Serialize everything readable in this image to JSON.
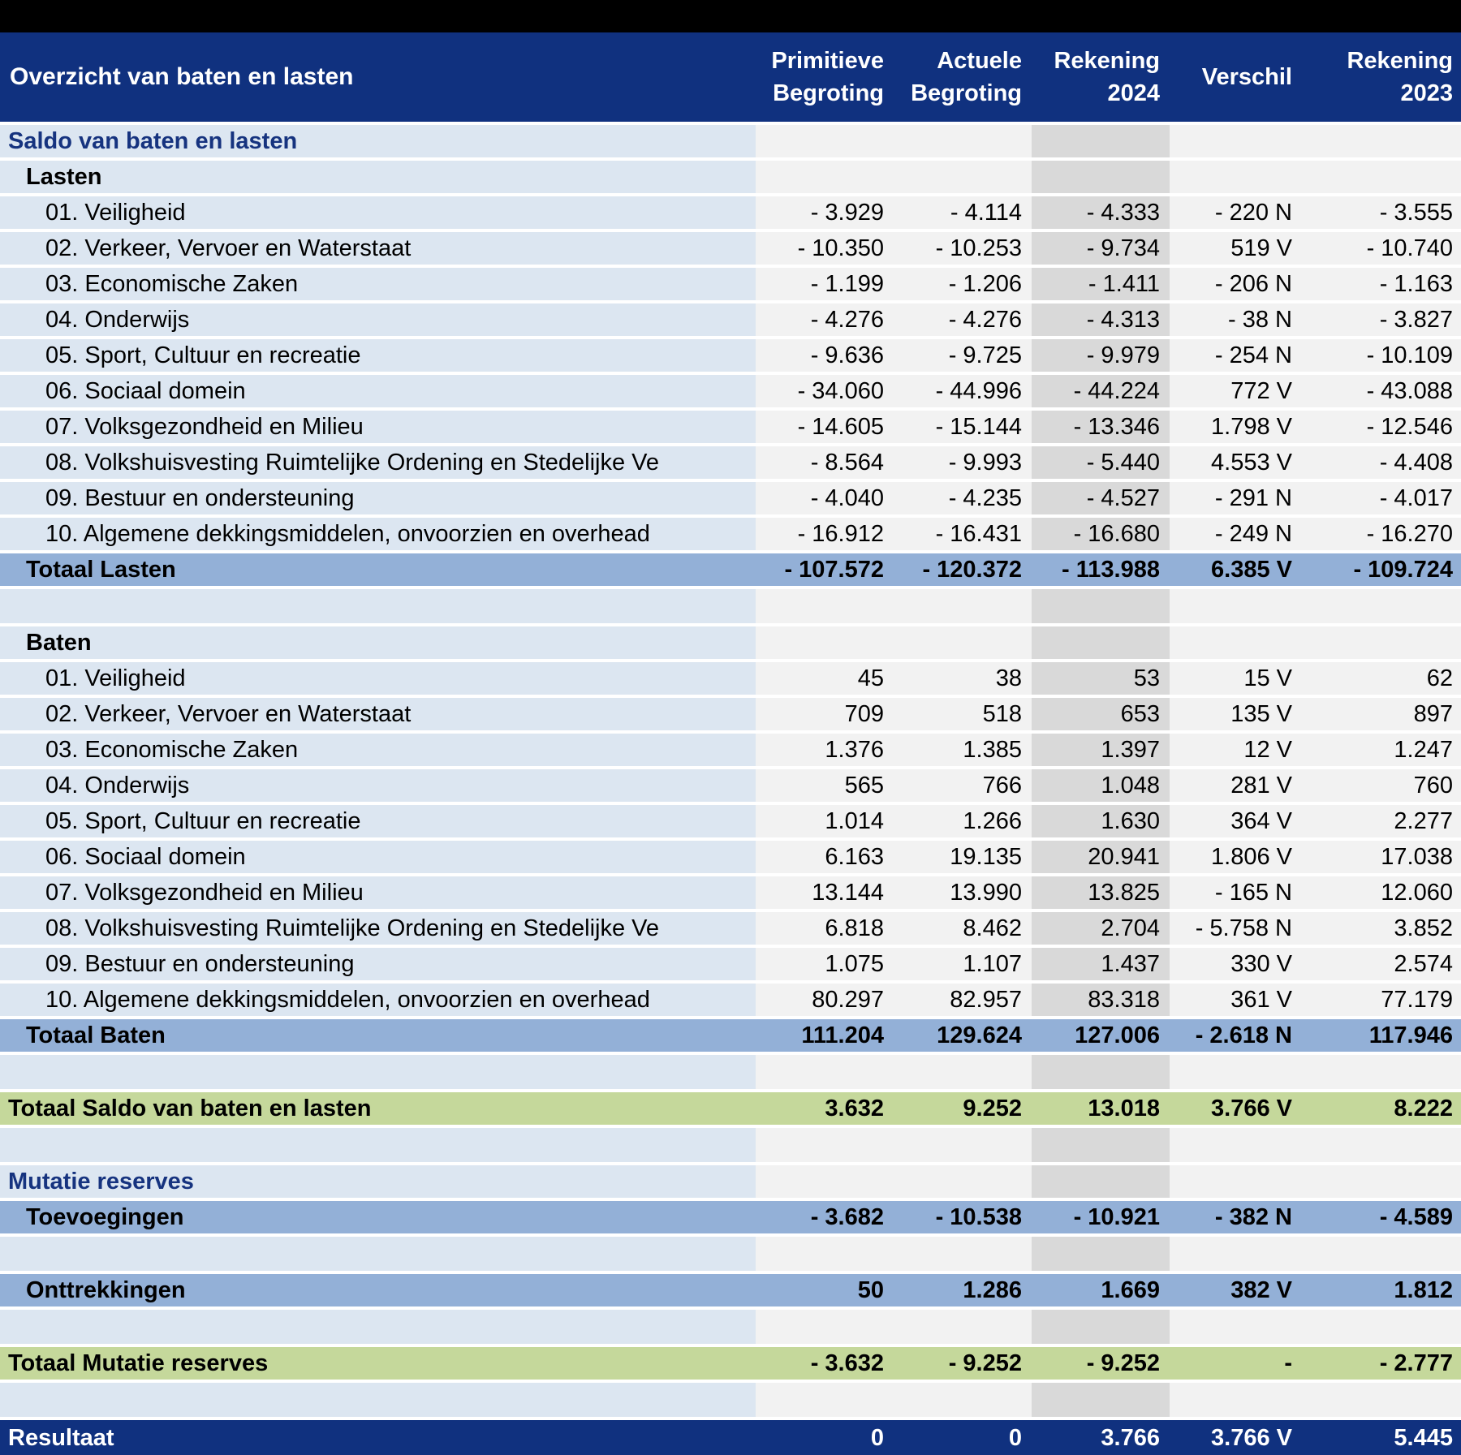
{
  "title": "Overzicht van baten en lasten",
  "colors": {
    "header_bg": "#10317F",
    "label_bg": "#DCE6F1",
    "value_bg": "#F2F2F2",
    "highlight_bg": "#D9D9D9",
    "total_bg": "#93B0D7",
    "grand_bg": "#C5D89B",
    "section_text": "#16337F"
  },
  "chart_data": {
    "type": "table",
    "title": "Overzicht van baten en lasten",
    "columns": [
      "Primitieve Begroting",
      "Actuele Begroting",
      "Rekening 2024",
      "Verschil",
      "Rekening 2023"
    ],
    "rows": [
      {
        "type": "section",
        "name": "row-saldo-van-baten-en-lasten",
        "label": "Saldo van baten en lasten",
        "values": [
          "",
          "",
          "",
          "",
          ""
        ]
      },
      {
        "type": "subheader",
        "name": "row-lasten-header",
        "label": "Lasten",
        "values": [
          "",
          "",
          "",
          "",
          ""
        ]
      },
      {
        "type": "item",
        "name": "row-lasten-01",
        "label": "01. Veiligheid",
        "values": [
          "- 3.929",
          "- 4.114",
          "- 4.333",
          "- 220 N",
          "- 3.555"
        ]
      },
      {
        "type": "item",
        "name": "row-lasten-02",
        "label": "02. Verkeer, Vervoer en Waterstaat",
        "values": [
          "- 10.350",
          "- 10.253",
          "- 9.734",
          "519 V",
          "- 10.740"
        ]
      },
      {
        "type": "item",
        "name": "row-lasten-03",
        "label": "03. Economische Zaken",
        "values": [
          "- 1.199",
          "- 1.206",
          "- 1.411",
          "- 206 N",
          "- 1.163"
        ]
      },
      {
        "type": "item",
        "name": "row-lasten-04",
        "label": "04. Onderwijs",
        "values": [
          "- 4.276",
          "- 4.276",
          "- 4.313",
          "- 38 N",
          "- 3.827"
        ]
      },
      {
        "type": "item",
        "name": "row-lasten-05",
        "label": "05. Sport, Cultuur en recreatie",
        "values": [
          "- 9.636",
          "- 9.725",
          "- 9.979",
          "- 254 N",
          "- 10.109"
        ]
      },
      {
        "type": "item",
        "name": "row-lasten-06",
        "label": "06. Sociaal domein",
        "values": [
          "- 34.060",
          "- 44.996",
          "- 44.224",
          "772 V",
          "- 43.088"
        ]
      },
      {
        "type": "item",
        "name": "row-lasten-07",
        "label": "07. Volksgezondheid en Milieu",
        "values": [
          "- 14.605",
          "- 15.144",
          "- 13.346",
          "1.798 V",
          "- 12.546"
        ]
      },
      {
        "type": "item",
        "name": "row-lasten-08",
        "label": "08. Volkshuisvesting Ruimtelijke Ordening en Stedelijke Ve",
        "values": [
          "- 8.564",
          "- 9.993",
          "- 5.440",
          "4.553 V",
          "- 4.408"
        ]
      },
      {
        "type": "item",
        "name": "row-lasten-09",
        "label": "09. Bestuur en ondersteuning",
        "values": [
          "- 4.040",
          "- 4.235",
          "- 4.527",
          "- 291 N",
          "- 4.017"
        ]
      },
      {
        "type": "item",
        "name": "row-lasten-10",
        "label": "10. Algemene dekkingsmiddelen, onvoorzien en overhead",
        "values": [
          "- 16.912",
          "- 16.431",
          "- 16.680",
          "- 249 N",
          "- 16.270"
        ]
      },
      {
        "type": "total",
        "name": "row-totaal-lasten",
        "label": "Totaal Lasten",
        "values": [
          "- 107.572",
          "- 120.372",
          "- 113.988",
          "6.385 V",
          "- 109.724"
        ]
      },
      {
        "type": "spacer",
        "name": "row-spacer-1",
        "label": "",
        "values": [
          "",
          "",
          "",
          "",
          ""
        ]
      },
      {
        "type": "subheader",
        "name": "row-baten-header",
        "label": "Baten",
        "values": [
          "",
          "",
          "",
          "",
          ""
        ]
      },
      {
        "type": "item",
        "name": "row-baten-01",
        "label": "01. Veiligheid",
        "values": [
          "45",
          "38",
          "53",
          "15 V",
          "62"
        ]
      },
      {
        "type": "item",
        "name": "row-baten-02",
        "label": "02. Verkeer, Vervoer en Waterstaat",
        "values": [
          "709",
          "518",
          "653",
          "135 V",
          "897"
        ]
      },
      {
        "type": "item",
        "name": "row-baten-03",
        "label": "03. Economische Zaken",
        "values": [
          "1.376",
          "1.385",
          "1.397",
          "12 V",
          "1.247"
        ]
      },
      {
        "type": "item",
        "name": "row-baten-04",
        "label": "04. Onderwijs",
        "values": [
          "565",
          "766",
          "1.048",
          "281 V",
          "760"
        ]
      },
      {
        "type": "item",
        "name": "row-baten-05",
        "label": "05. Sport, Cultuur en recreatie",
        "values": [
          "1.014",
          "1.266",
          "1.630",
          "364 V",
          "2.277"
        ]
      },
      {
        "type": "item",
        "name": "row-baten-06",
        "label": "06. Sociaal domein",
        "values": [
          "6.163",
          "19.135",
          "20.941",
          "1.806 V",
          "17.038"
        ]
      },
      {
        "type": "item",
        "name": "row-baten-07",
        "label": "07. Volksgezondheid en Milieu",
        "values": [
          "13.144",
          "13.990",
          "13.825",
          "- 165 N",
          "12.060"
        ]
      },
      {
        "type": "item",
        "name": "row-baten-08",
        "label": "08. Volkshuisvesting Ruimtelijke Ordening en Stedelijke Ve",
        "values": [
          "6.818",
          "8.462",
          "2.704",
          "- 5.758 N",
          "3.852"
        ]
      },
      {
        "type": "item",
        "name": "row-baten-09",
        "label": "09. Bestuur en ondersteuning",
        "values": [
          "1.075",
          "1.107",
          "1.437",
          "330 V",
          "2.574"
        ]
      },
      {
        "type": "item",
        "name": "row-baten-10",
        "label": "10. Algemene dekkingsmiddelen, onvoorzien en overhead",
        "values": [
          "80.297",
          "82.957",
          "83.318",
          "361 V",
          "77.179"
        ]
      },
      {
        "type": "total",
        "name": "row-totaal-baten",
        "label": "Totaal Baten",
        "values": [
          "111.204",
          "129.624",
          "127.006",
          "- 2.618 N",
          "117.946"
        ]
      },
      {
        "type": "spacer",
        "name": "row-spacer-2",
        "label": "",
        "values": [
          "",
          "",
          "",
          "",
          ""
        ]
      },
      {
        "type": "grand",
        "name": "row-totaal-saldo",
        "label": "Totaal Saldo van baten en lasten",
        "values": [
          "3.632",
          "9.252",
          "13.018",
          "3.766 V",
          "8.222"
        ]
      },
      {
        "type": "spacer",
        "name": "row-spacer-3",
        "label": "",
        "values": [
          "",
          "",
          "",
          "",
          ""
        ]
      },
      {
        "type": "section",
        "name": "row-mutatie-reserves",
        "label": "Mutatie reserves",
        "values": [
          "",
          "",
          "",
          "",
          ""
        ]
      },
      {
        "type": "total",
        "name": "row-toevoegingen",
        "label": "Toevoegingen",
        "values": [
          "- 3.682",
          "- 10.538",
          "- 10.921",
          "- 382 N",
          "- 4.589"
        ]
      },
      {
        "type": "spacer",
        "name": "row-spacer-4",
        "label": "",
        "values": [
          "",
          "",
          "",
          "",
          ""
        ]
      },
      {
        "type": "total",
        "name": "row-onttrekkingen",
        "label": "Onttrekkingen",
        "values": [
          "50",
          "1.286",
          "1.669",
          "382 V",
          "1.812"
        ]
      },
      {
        "type": "spacer",
        "name": "row-spacer-5",
        "label": "",
        "values": [
          "",
          "",
          "",
          "",
          ""
        ]
      },
      {
        "type": "grand",
        "name": "row-totaal-mutatie-reserves",
        "label": "Totaal Mutatie reserves",
        "values": [
          "- 3.632",
          "- 9.252",
          "- 9.252",
          "-",
          "- 2.777"
        ]
      },
      {
        "type": "spacer",
        "name": "row-spacer-6",
        "label": "",
        "values": [
          "",
          "",
          "",
          "",
          ""
        ]
      },
      {
        "type": "result",
        "name": "row-resultaat",
        "label": "Resultaat",
        "values": [
          "0",
          "0",
          "3.766",
          "3.766 V",
          "5.445"
        ]
      }
    ]
  }
}
